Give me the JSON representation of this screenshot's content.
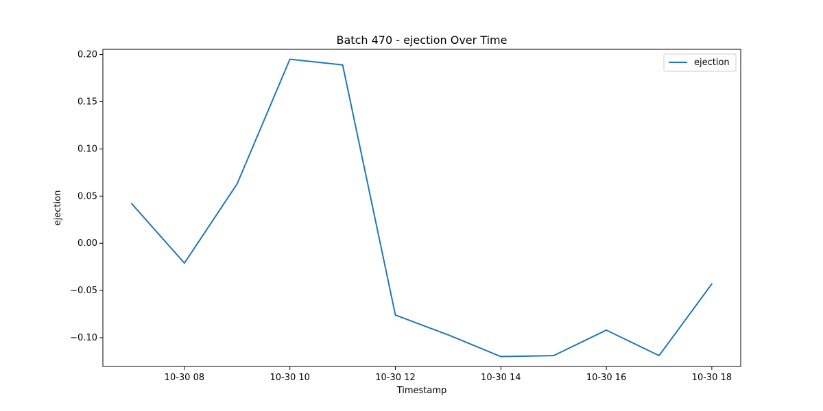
{
  "chart_data": {
    "type": "line",
    "title": "Batch 470 - ejection Over Time",
    "xlabel": "Timestamp",
    "ylabel": "ejection",
    "x": [
      "10-30 07",
      "10-30 08",
      "10-30 09",
      "10-30 10",
      "10-30 11",
      "10-30 12",
      "10-30 13",
      "10-30 14",
      "10-30 15",
      "10-30 16",
      "10-30 17",
      "10-30 18"
    ],
    "series": [
      {
        "name": "ejection",
        "color": "#1f77b4",
        "values": [
          0.042,
          -0.021,
          0.063,
          0.195,
          0.189,
          -0.076,
          -0.097,
          -0.12,
          -0.119,
          -0.092,
          -0.119,
          -0.043
        ]
      }
    ],
    "xticks": [
      "10-30 08",
      "10-30 10",
      "10-30 12",
      "10-30 14",
      "10-30 16",
      "10-30 18"
    ],
    "yticks": [
      "−0.10",
      "−0.05",
      "0.00",
      "0.05",
      "0.10",
      "0.15",
      "0.20"
    ],
    "ylim": [
      -0.1305,
      0.2055
    ],
    "grid": false,
    "legend_position": "top-right"
  }
}
